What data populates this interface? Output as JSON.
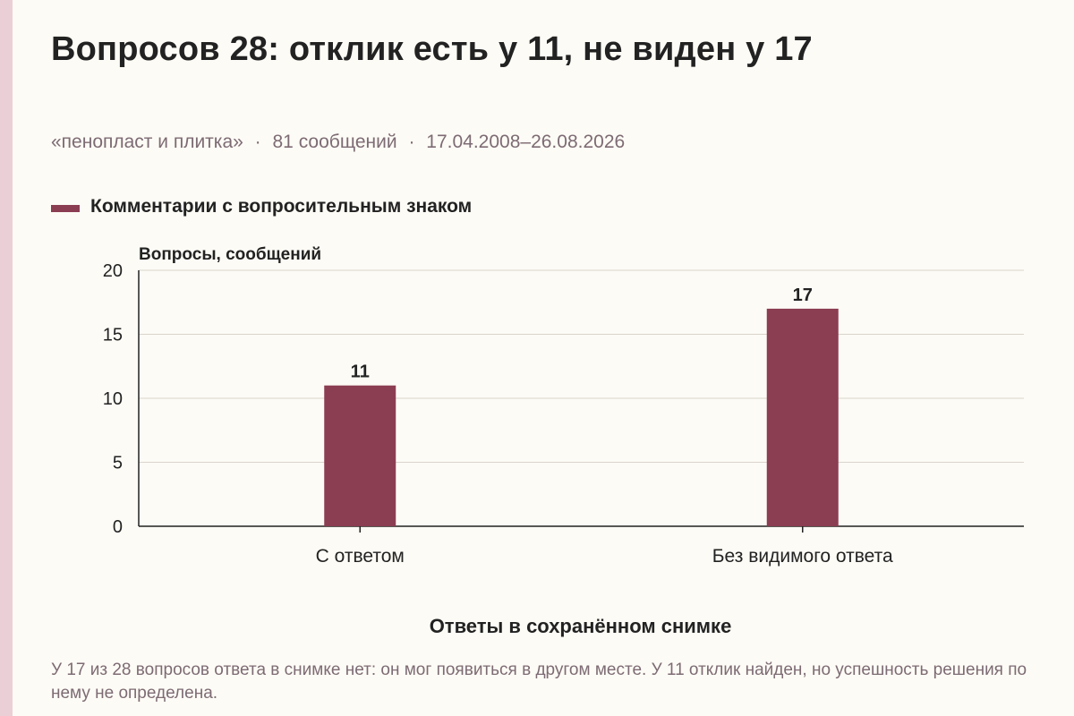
{
  "title": "Вопросов 28: отклик есть у 11, не виден у 17",
  "subtitle": {
    "parts": [
      "«пенопласт и плитка»",
      "81 сообщений",
      "17.04.2008–26.08.2026"
    ],
    "separator": "·"
  },
  "caption": "У 17 из 28 вопросов ответа в снимке нет: он мог появиться в другом месте. У 11 отклик найден, но успешность решения по нему не определена.",
  "colors": {
    "bar": "#8b3d52",
    "grid": "#d9d4cc",
    "axis": "#222222",
    "text": "#222222",
    "muted": "#7d6b74"
  },
  "chart_data": {
    "type": "bar",
    "categories": [
      "С ответом",
      "Без видимого ответа"
    ],
    "series": [
      {
        "name": "Комментарии с вопросительным знаком",
        "values": [
          11,
          17
        ]
      }
    ],
    "ylabel": "Вопросы, сообщений",
    "xlabel": "Ответы в сохранённом снимке",
    "ylim": [
      0,
      20
    ],
    "yticks": [
      0,
      5,
      10,
      15,
      20
    ],
    "data_labels": true,
    "grid": true,
    "legend": "top-left"
  }
}
